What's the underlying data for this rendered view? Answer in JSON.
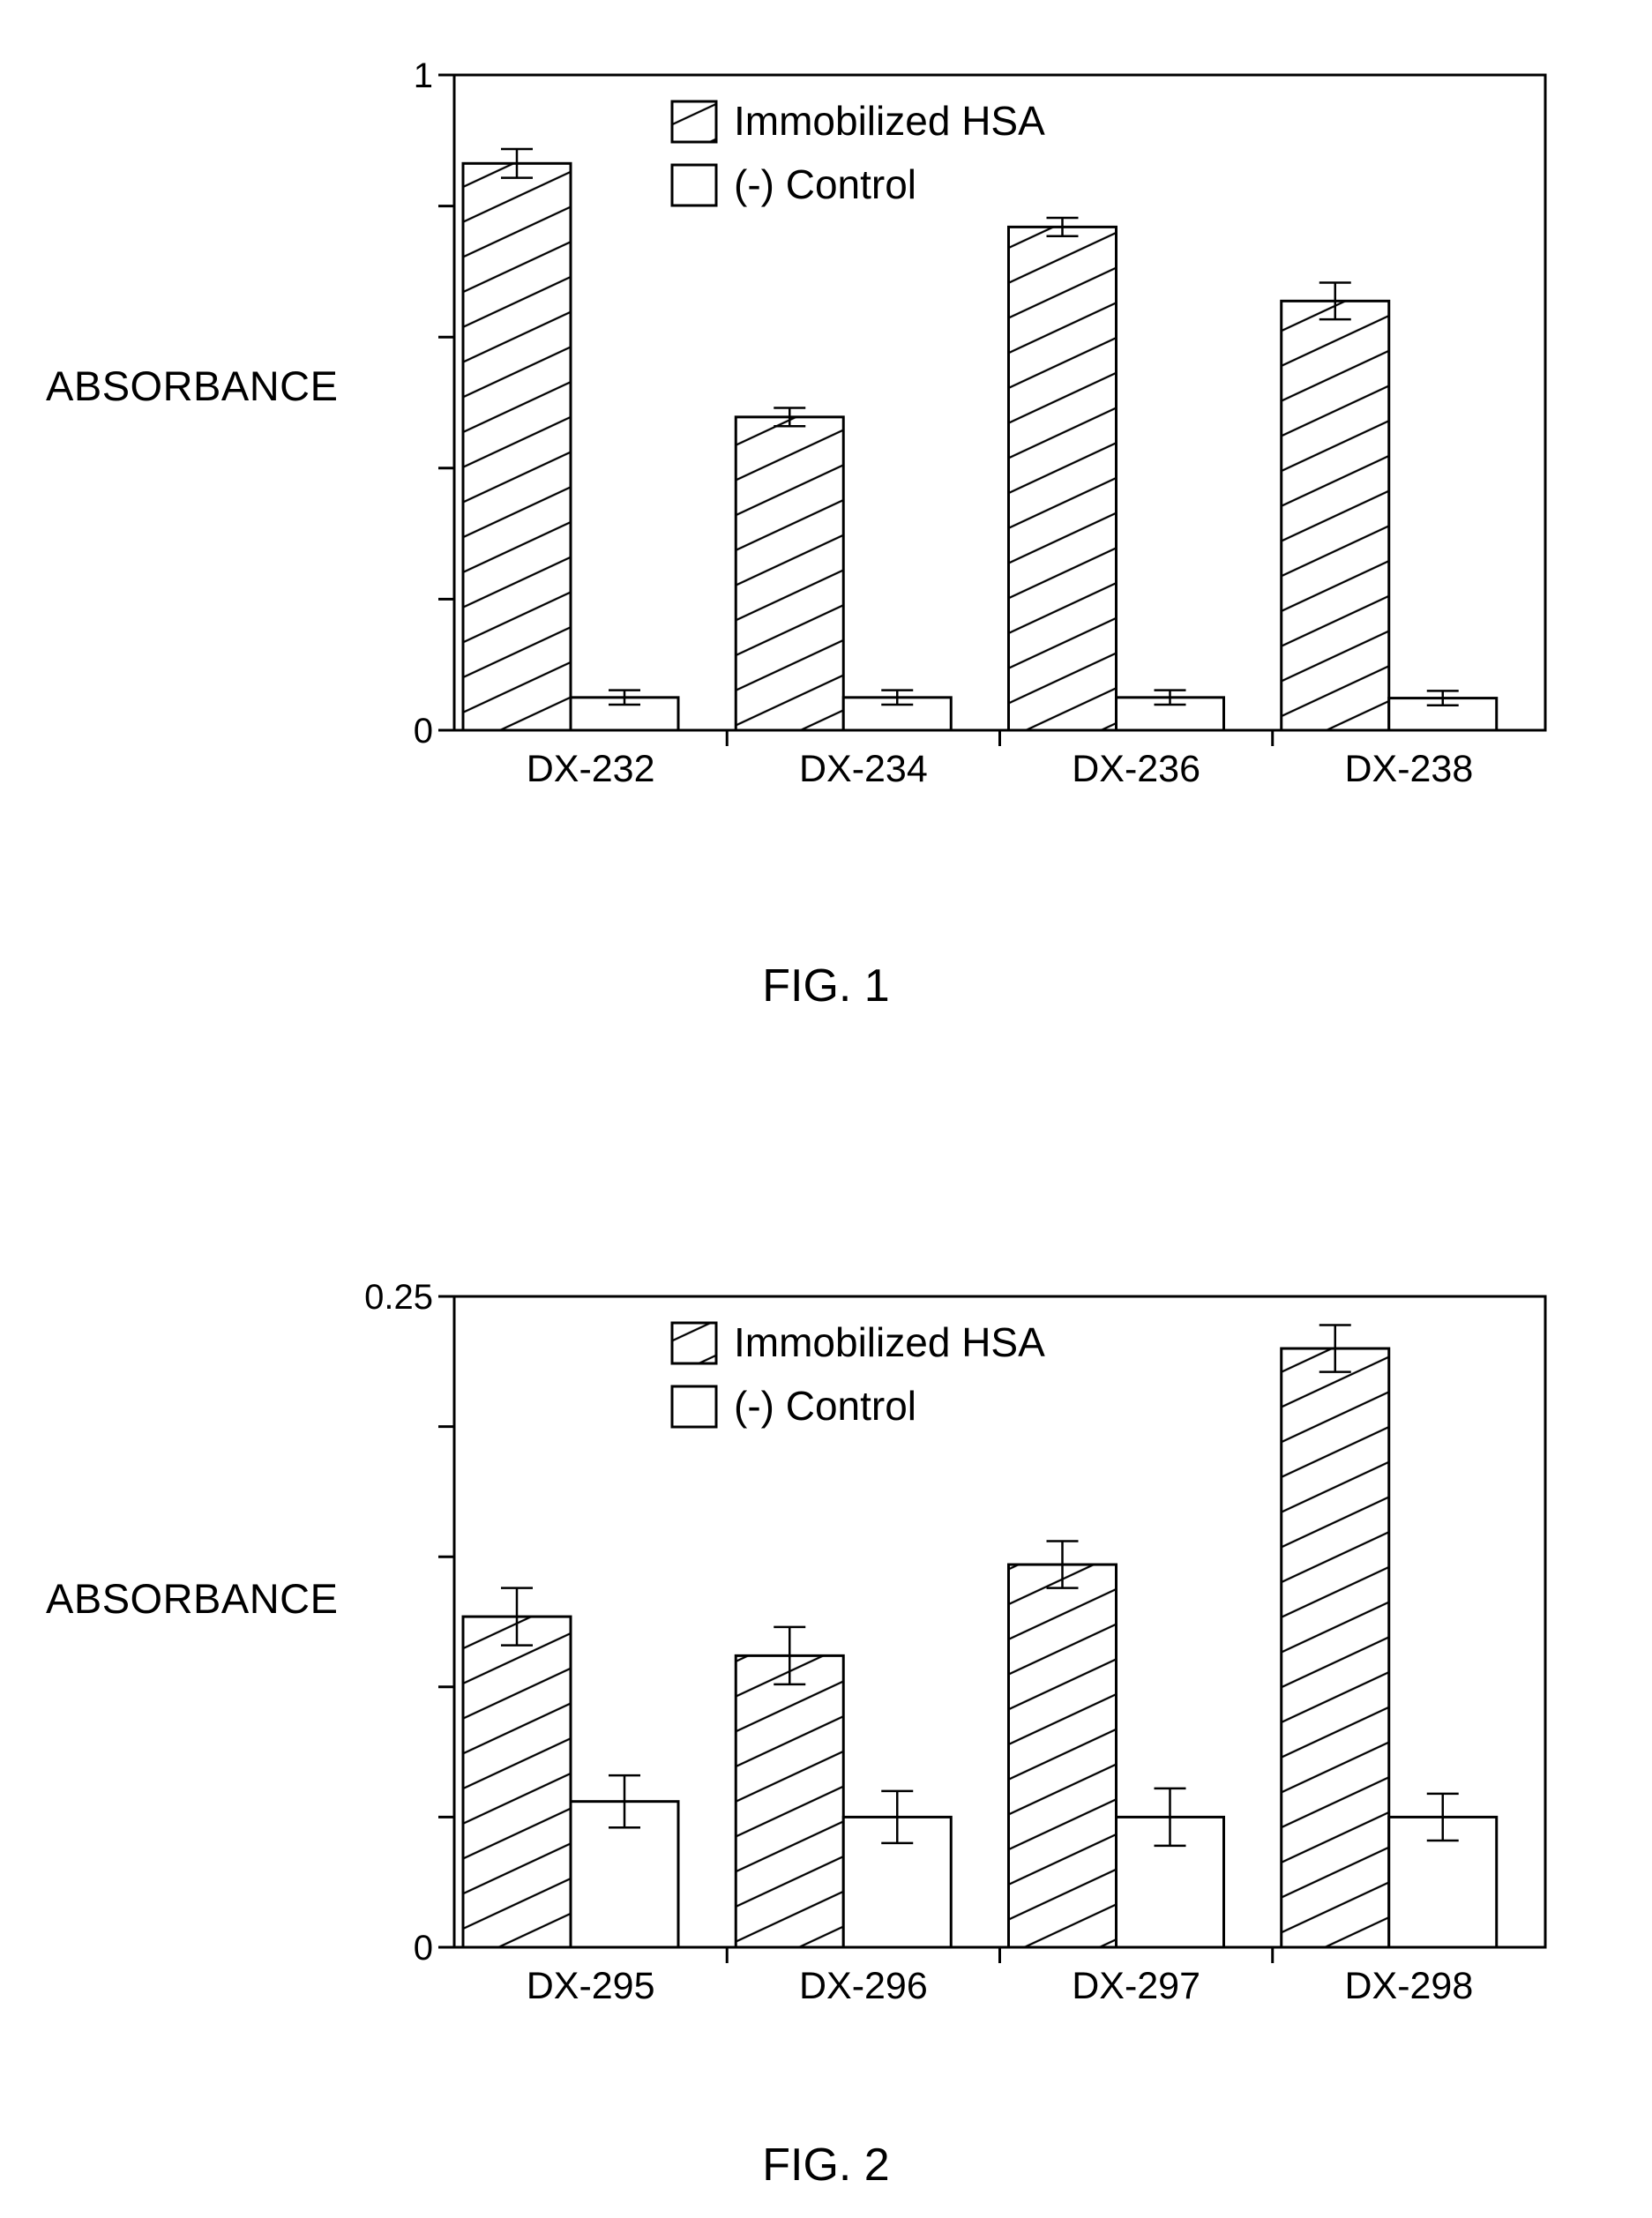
{
  "figures": [
    {
      "caption": "FIG. 1",
      "ylabel": "ABSORBANCE",
      "legend": {
        "series_1": "Immobilized HSA",
        "series_2": "(-) Control"
      }
    },
    {
      "caption": "FIG. 2",
      "ylabel": "ABSORBANCE",
      "legend": {
        "series_1": "Immobilized HSA",
        "series_2": "(-) Control"
      }
    }
  ],
  "chart_data": [
    {
      "type": "bar",
      "title": "",
      "xlabel": "",
      "ylabel": "ABSORBANCE",
      "ylim": [
        0,
        1
      ],
      "ytick_labels": [
        "0",
        "1"
      ],
      "y_minor_ticks": [
        0.2,
        0.4,
        0.6,
        0.8
      ],
      "categories": [
        "DX-232",
        "DX-234",
        "DX-236",
        "DX-238"
      ],
      "legend_position": "top-center",
      "grid": false,
      "series": [
        {
          "name": "Immobilized HSA",
          "pattern": "diagonal-hatch",
          "values": [
            0.865,
            0.478,
            0.768,
            0.655
          ],
          "errors": [
            0.022,
            0.014,
            0.014,
            0.028
          ]
        },
        {
          "name": "(-) Control",
          "pattern": "solid-white",
          "values": [
            0.05,
            0.05,
            0.05,
            0.049
          ],
          "errors": [
            0.011,
            0.011,
            0.011,
            0.011
          ]
        }
      ]
    },
    {
      "type": "bar",
      "title": "",
      "xlabel": "",
      "ylabel": "ABSORBANCE",
      "ylim": [
        0,
        0.25
      ],
      "ytick_labels": [
        "0",
        "0.25"
      ],
      "y_minor_ticks": [
        0.05,
        0.1,
        0.15,
        0.2
      ],
      "categories": [
        "DX-295",
        "DX-296",
        "DX-297",
        "DX-298"
      ],
      "legend_position": "top-center",
      "grid": false,
      "series": [
        {
          "name": "Immobilized HSA",
          "pattern": "diagonal-hatch",
          "values": [
            0.127,
            0.112,
            0.147,
            0.23
          ],
          "errors": [
            0.011,
            0.011,
            0.009,
            0.009
          ]
        },
        {
          "name": "(-) Control",
          "pattern": "solid-white",
          "values": [
            0.056,
            0.05,
            0.05,
            0.05
          ],
          "errors": [
            0.01,
            0.01,
            0.011,
            0.009
          ]
        }
      ]
    }
  ]
}
